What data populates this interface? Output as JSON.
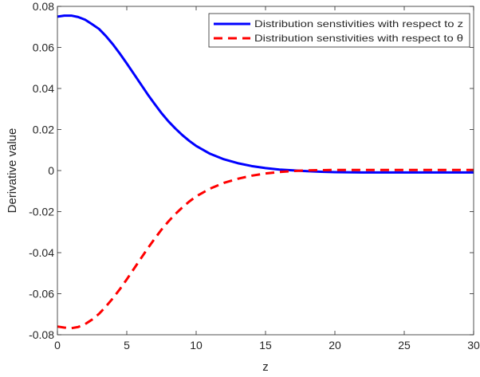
{
  "chart_data": {
    "type": "line",
    "title": "",
    "xlabel": "z",
    "ylabel": "Derivative value",
    "xlim": [
      0,
      30
    ],
    "ylim": [
      -0.08,
      0.08
    ],
    "xticks": [
      0,
      5,
      10,
      15,
      20,
      25,
      30
    ],
    "xtick_labels": [
      "0",
      "5",
      "10",
      "15",
      "20",
      "25",
      "30"
    ],
    "yticks": [
      -0.08,
      -0.06,
      -0.04,
      -0.02,
      0,
      0.02,
      0.04,
      0.06,
      0.08
    ],
    "ytick_labels": [
      "-0.08",
      "-0.06",
      "-0.04",
      "-0.02",
      "0",
      "0.02",
      "0.04",
      "0.06",
      "0.08"
    ],
    "grid": false,
    "legend_position": "top-right",
    "series": [
      {
        "name": "Distribution senstivities with respect to z",
        "color": "#0000ff",
        "style": "solid",
        "x": [
          0,
          0.5,
          1,
          1.5,
          2,
          2.5,
          3,
          3.5,
          4,
          4.5,
          5,
          5.5,
          6,
          6.5,
          7,
          7.5,
          8,
          8.5,
          9,
          9.5,
          10,
          11,
          12,
          13,
          14,
          15,
          16,
          17,
          18,
          19,
          20,
          22,
          24,
          26,
          28,
          30
        ],
        "y": [
          0.075,
          0.0755,
          0.0755,
          0.0748,
          0.0735,
          0.0713,
          0.069,
          0.0655,
          0.0615,
          0.057,
          0.0522,
          0.0472,
          0.0422,
          0.0372,
          0.0325,
          0.028,
          0.024,
          0.0205,
          0.0173,
          0.0145,
          0.012,
          0.0082,
          0.0055,
          0.0036,
          0.0022,
          0.0012,
          0.0005,
          0.0001,
          -0.0003,
          -0.0006,
          -0.0008,
          -0.0009,
          -0.0009,
          -0.0009,
          -0.0009,
          -0.0009
        ]
      },
      {
        "name": "Distribution senstivities with respect to θ",
        "color": "#ff0000",
        "style": "dashed",
        "x": [
          0,
          0.5,
          1,
          1.5,
          2,
          2.5,
          3,
          3.5,
          4,
          4.5,
          5,
          5.5,
          6,
          6.5,
          7,
          7.5,
          8,
          8.5,
          9,
          9.5,
          10,
          11,
          12,
          13,
          14,
          15,
          16,
          17,
          18,
          19,
          20,
          22,
          24,
          26,
          28,
          30
        ],
        "y": [
          -0.076,
          -0.0765,
          -0.0768,
          -0.0762,
          -0.0748,
          -0.0726,
          -0.0698,
          -0.0662,
          -0.0622,
          -0.0578,
          -0.053,
          -0.048,
          -0.043,
          -0.038,
          -0.0333,
          -0.0288,
          -0.0248,
          -0.0212,
          -0.018,
          -0.0151,
          -0.0126,
          -0.0088,
          -0.006,
          -0.004,
          -0.0025,
          -0.0014,
          -0.0007,
          -0.0002,
          0.0001,
          0.0002,
          0.0003,
          0.0003,
          0.0003,
          0.0003,
          0.0003,
          0.0003
        ]
      }
    ]
  }
}
